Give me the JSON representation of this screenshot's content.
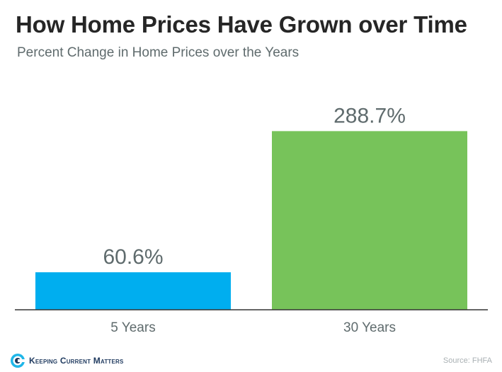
{
  "title": "How Home Prices Have Grown over Time",
  "subtitle": "Percent Change in Home Prices over the Years",
  "chart_data": {
    "type": "bar",
    "categories": [
      "5 Years",
      "30 Years"
    ],
    "values": [
      60.6,
      288.7
    ],
    "value_labels": [
      "60.6%",
      "288.7%"
    ],
    "colors": [
      "#00aeef",
      "#77c35a"
    ],
    "ylim": [
      0,
      320
    ],
    "grid": false,
    "legend": "none"
  },
  "footer": {
    "brand": "Keeping Current Matters",
    "source": "Source: FHFA"
  },
  "colors": {
    "title": "#262626",
    "subtitle": "#5f6b6d",
    "axis": "#333333",
    "label": "#5f6b6d",
    "brand": "#1f3a5f"
  }
}
